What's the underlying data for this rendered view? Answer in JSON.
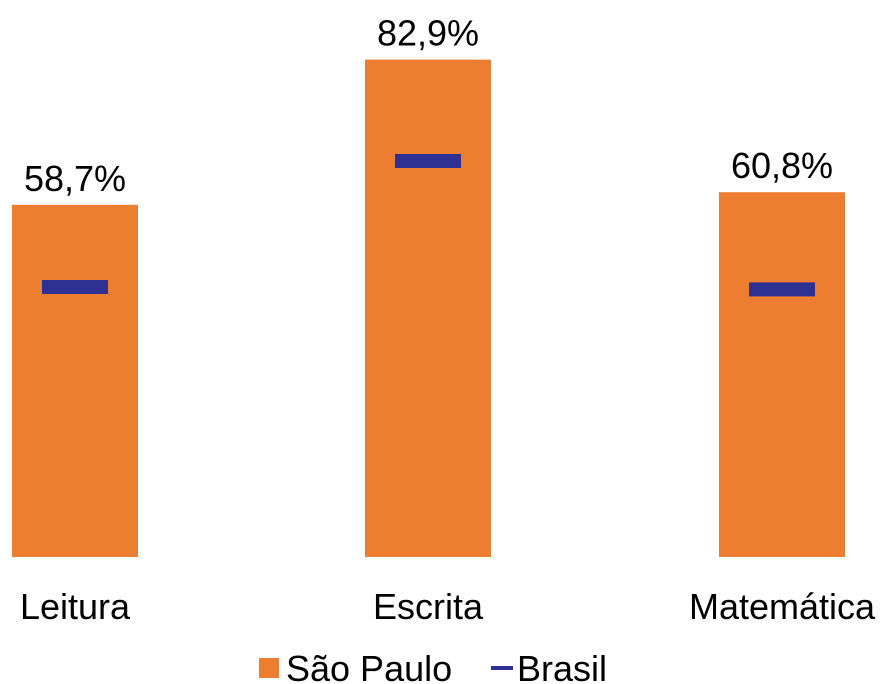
{
  "chart_data": {
    "type": "bar",
    "categories": [
      "Leitura",
      "Escrita",
      "Matemática"
    ],
    "series": [
      {
        "name": "São Paulo",
        "values": [
          58.7,
          82.9,
          60.8
        ],
        "labels": [
          "58,7%",
          "82,9%",
          "60,8%"
        ],
        "color": "#ED7D31",
        "kind": "bar"
      },
      {
        "name": "Brasil",
        "values": [
          45.0,
          66.0,
          44.6
        ],
        "color": "#2E3192",
        "kind": "marker"
      }
    ],
    "ylim": [
      0,
      100
    ],
    "grid": false,
    "legend": "bottom"
  }
}
